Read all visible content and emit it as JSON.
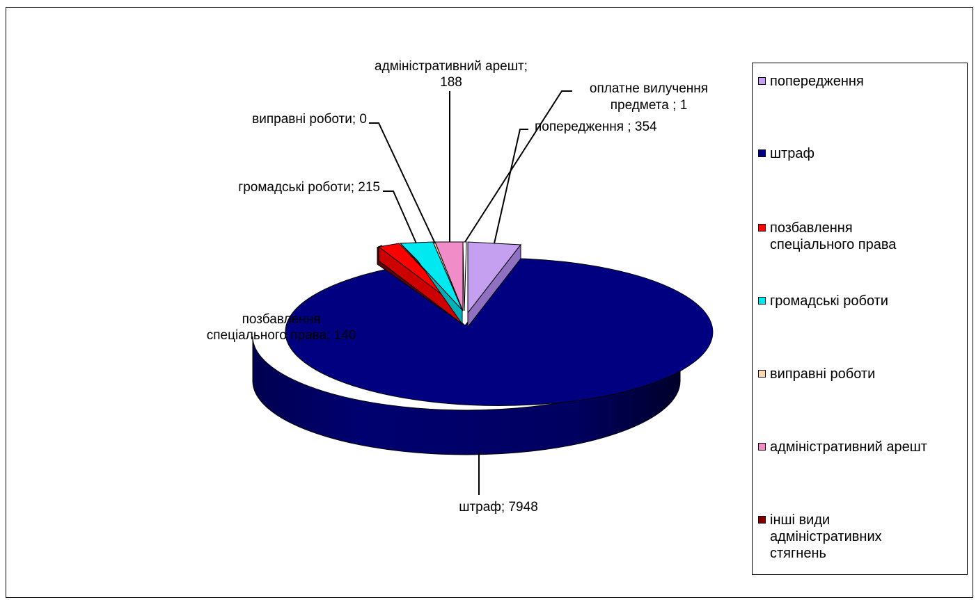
{
  "chart_data": {
    "type": "pie",
    "three_d": true,
    "slices": [
      {
        "label": "попередження",
        "value": 354,
        "color": "#c5a0f0",
        "data_label": "попередження ; 354"
      },
      {
        "label": "оплатне вилучення предмета",
        "value": 1,
        "color": "#ffffff",
        "data_label_lines": [
          "оплатне вилучення",
          "предмета ; 1"
        ]
      },
      {
        "label": "адміністративний арешт",
        "value": 188,
        "color": "#f08cc8",
        "data_label_lines": [
          "адміністративний арешт;",
          "188"
        ]
      },
      {
        "label": "виправні роботи",
        "value": 0,
        "color": "#ffd8b0",
        "data_label": "виправні роботи; 0"
      },
      {
        "label": "громадські роботи",
        "value": 215,
        "color": "#00e8f0",
        "data_label": "громадські роботи; 215"
      },
      {
        "label": "позбавлення спеціального права",
        "value": 140,
        "color": "#ff0000",
        "data_label_lines": [
          "позбавлення",
          "спеціального  права; 140"
        ]
      },
      {
        "label": "інші види адміністративних стягнень",
        "value": 0,
        "color": "#800000"
      },
      {
        "label": "штраф",
        "value": 7948,
        "color": "#000080",
        "data_label": "штраф; 7948"
      }
    ]
  },
  "legend": {
    "items": [
      {
        "lines": [
          "попередження"
        ],
        "color": "#c5a0f0"
      },
      {
        "lines": [
          "штраф"
        ],
        "color": "#000080"
      },
      {
        "lines": [
          "позбавлення",
          "спеціального  права"
        ],
        "color": "#ff0000"
      },
      {
        "lines": [
          "громадські роботи"
        ],
        "color": "#00e8f0"
      },
      {
        "lines": [
          "виправні  роботи"
        ],
        "color": "#ffd8b0"
      },
      {
        "lines": [
          "адміністративний  арешт"
        ],
        "color": "#f08cc8"
      },
      {
        "lines": [
          "інші  види",
          "адміністративних",
          "стягнень"
        ],
        "color": "#800000"
      }
    ]
  }
}
